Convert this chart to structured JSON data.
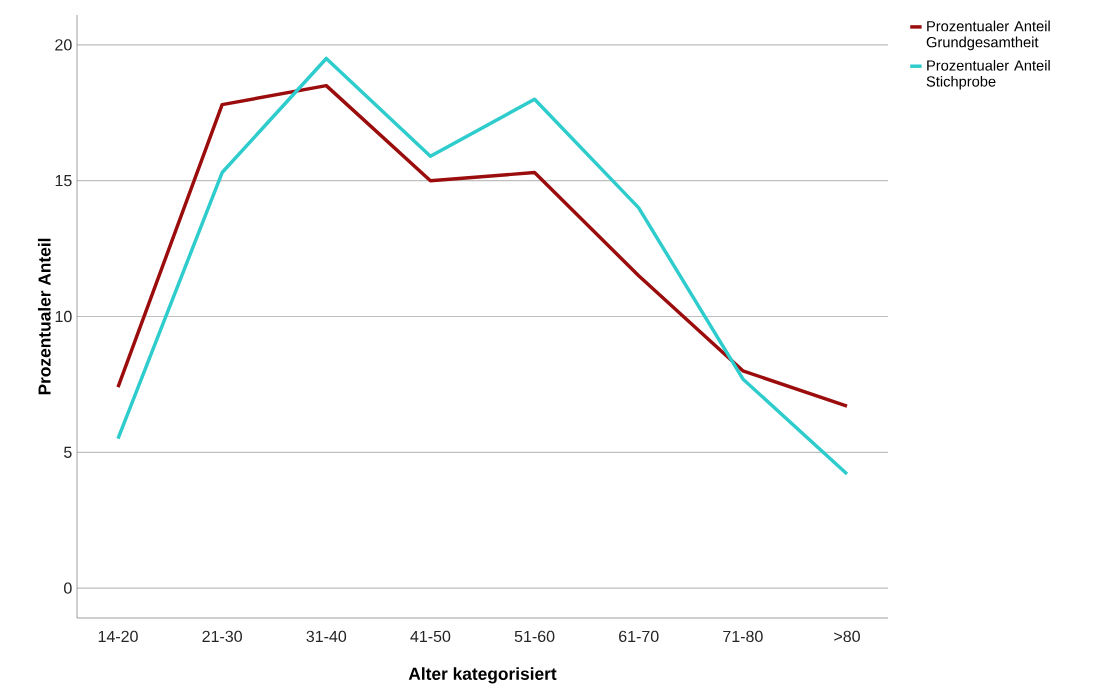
{
  "chart_data": {
    "type": "line",
    "xlabel": "Alter kategorisiert",
    "ylabel": "Prozentualer Anteil",
    "categories": [
      "14-20",
      "21-30",
      "31-40",
      "41-50",
      "51-60",
      "61-70",
      "71-80",
      ">80"
    ],
    "series": [
      {
        "name": "Prozentualer Anteil Grundgesamtheit",
        "color": "#9b0d0d",
        "values": [
          7.4,
          17.8,
          18.5,
          15.0,
          15.3,
          11.5,
          8.0,
          6.7
        ]
      },
      {
        "name": "Prozentualer Anteil Stichprobe",
        "color": "#2ecccc",
        "values": [
          5.5,
          15.3,
          19.5,
          15.9,
          18.0,
          14.0,
          7.7,
          4.2
        ]
      }
    ],
    "ylim": [
      -1.1,
      21.1
    ],
    "yticks": [
      0,
      5,
      10,
      15,
      20
    ],
    "grid": "y",
    "legend": "top right"
  }
}
